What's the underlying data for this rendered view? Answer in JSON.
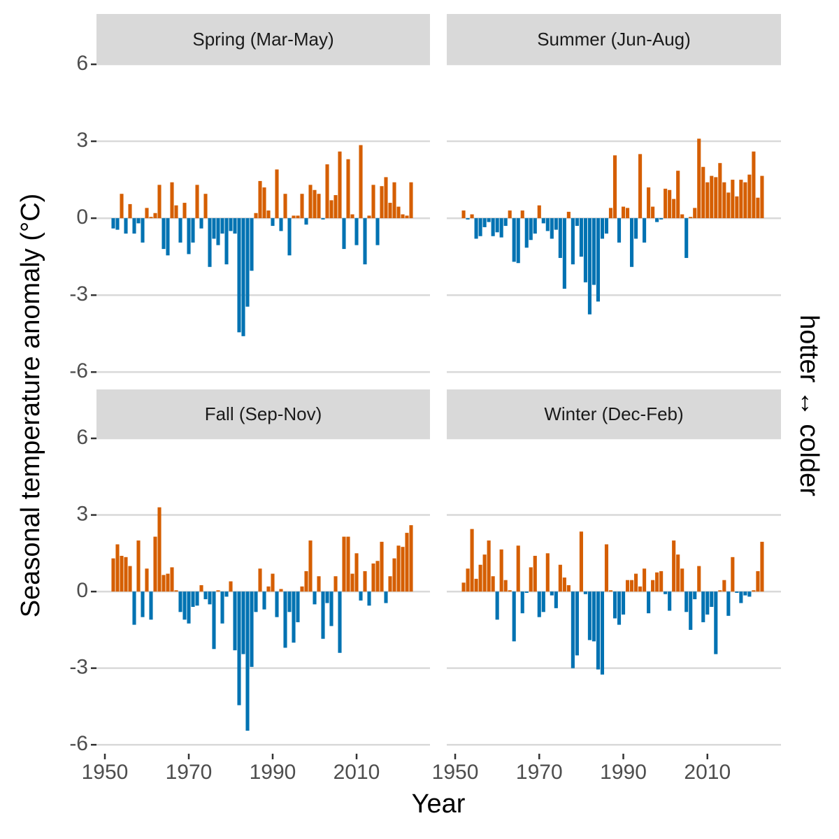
{
  "figure": {
    "xlabel": "Year",
    "ylabel": "Seasonal temperature anomaly (°C)",
    "right_label": "hotter ↔ colder"
  },
  "chart_data": [
    {
      "type": "bar",
      "title": "Spring (Mar-May)",
      "positive_color": "#D55E00",
      "negative_color": "#0072B2",
      "grid": true,
      "xlim": [
        1948,
        2027.5
      ],
      "ylim": [
        -6.35,
        6
      ],
      "yticks": [
        -6,
        -3,
        0,
        3,
        6
      ],
      "x": [
        1952,
        1953,
        1954,
        1955,
        1956,
        1957,
        1958,
        1959,
        1960,
        1961,
        1962,
        1963,
        1964,
        1965,
        1966,
        1967,
        1968,
        1969,
        1970,
        1971,
        1972,
        1973,
        1974,
        1975,
        1976,
        1977,
        1978,
        1979,
        1980,
        1981,
        1982,
        1983,
        1984,
        1985,
        1986,
        1987,
        1988,
        1989,
        1990,
        1991,
        1992,
        1993,
        1994,
        1995,
        1996,
        1997,
        1998,
        1999,
        2000,
        2001,
        2002,
        2003,
        2004,
        2005,
        2006,
        2007,
        2008,
        2009,
        2010,
        2011,
        2012,
        2013,
        2014,
        2015,
        2016,
        2017,
        2018,
        2019,
        2020,
        2021,
        2022,
        2023
      ],
      "values": [
        -0.4,
        -0.45,
        0.95,
        -0.6,
        0.55,
        -0.6,
        -0.2,
        -0.95,
        0.4,
        0.05,
        0.2,
        1.3,
        -1.2,
        -1.45,
        1.4,
        0.5,
        -0.95,
        0.6,
        -1.4,
        -0.95,
        1.3,
        -0.4,
        0.95,
        -1.9,
        -0.8,
        -1.05,
        -0.6,
        -1.8,
        -0.5,
        -0.6,
        -4.45,
        -4.6,
        -3.45,
        -2.05,
        0.2,
        1.45,
        1.2,
        0.3,
        -0.3,
        1.9,
        -0.5,
        0.95,
        -1.45,
        0.1,
        0.1,
        0.95,
        -0.25,
        1.3,
        1.1,
        0.95,
        -0.05,
        2.1,
        0.7,
        0.9,
        2.6,
        -1.2,
        2.3,
        0.15,
        -1.05,
        2.85,
        -1.8,
        0.1,
        1.3,
        -1.05,
        1.25,
        1.6,
        0.6,
        1.4,
        0.45,
        0.15,
        0.1,
        1.4
      ]
    },
    {
      "type": "bar",
      "title": "Summer (Jun-Aug)",
      "positive_color": "#D55E00",
      "negative_color": "#0072B2",
      "grid": true,
      "xlim": [
        1948,
        2027.5
      ],
      "ylim": [
        -6.35,
        6
      ],
      "yticks": [
        -6,
        -3,
        0,
        3,
        6
      ],
      "x": [
        1952,
        1953,
        1954,
        1955,
        1956,
        1957,
        1958,
        1959,
        1960,
        1961,
        1962,
        1963,
        1964,
        1965,
        1966,
        1967,
        1968,
        1969,
        1970,
        1971,
        1972,
        1973,
        1974,
        1975,
        1976,
        1977,
        1978,
        1979,
        1980,
        1981,
        1982,
        1983,
        1984,
        1985,
        1986,
        1987,
        1988,
        1989,
        1990,
        1991,
        1992,
        1993,
        1994,
        1995,
        1996,
        1997,
        1998,
        1999,
        2000,
        2001,
        2002,
        2003,
        2004,
        2005,
        2006,
        2007,
        2008,
        2009,
        2010,
        2011,
        2012,
        2013,
        2014,
        2015,
        2016,
        2017,
        2018,
        2019,
        2020,
        2021,
        2022,
        2023
      ],
      "values": [
        0.3,
        -0.05,
        0.15,
        -0.8,
        -0.7,
        -0.35,
        -0.15,
        -0.7,
        -0.55,
        -0.75,
        -0.3,
        0.3,
        -1.7,
        -1.75,
        0.3,
        -1.15,
        -0.85,
        -0.6,
        0.5,
        -0.2,
        -0.5,
        -0.8,
        -0.45,
        -1.55,
        -2.75,
        0.25,
        -1.8,
        -0.3,
        -1.5,
        -2.5,
        -3.75,
        -2.6,
        -3.25,
        -0.8,
        -0.6,
        0.4,
        2.45,
        -0.95,
        0.45,
        0.4,
        -1.9,
        -0.8,
        2.5,
        -0.95,
        1.2,
        0.45,
        -0.15,
        -0.05,
        1.15,
        1.1,
        0.75,
        1.85,
        0.15,
        -1.55,
        0.05,
        0.4,
        3.1,
        2.0,
        1.4,
        1.65,
        1.6,
        2.15,
        1.4,
        1.0,
        1.5,
        0.85,
        1.5,
        1.4,
        1.7,
        2.6,
        0.8,
        1.65
      ]
    },
    {
      "type": "bar",
      "title": "Fall (Sep-Nov)",
      "positive_color": "#D55E00",
      "negative_color": "#0072B2",
      "grid": true,
      "xlim": [
        1948,
        2027.5
      ],
      "ylim": [
        -6.35,
        6
      ],
      "yticks": [
        -6,
        -3,
        0,
        3,
        6
      ],
      "xticks": [
        1950,
        1970,
        1990,
        2010
      ],
      "x": [
        1952,
        1953,
        1954,
        1955,
        1956,
        1957,
        1958,
        1959,
        1960,
        1961,
        1962,
        1963,
        1964,
        1965,
        1966,
        1967,
        1968,
        1969,
        1970,
        1971,
        1972,
        1973,
        1974,
        1975,
        1976,
        1977,
        1978,
        1979,
        1980,
        1981,
        1982,
        1983,
        1984,
        1985,
        1986,
        1987,
        1988,
        1989,
        1990,
        1991,
        1992,
        1993,
        1994,
        1995,
        1996,
        1997,
        1998,
        1999,
        2000,
        2001,
        2002,
        2003,
        2004,
        2005,
        2006,
        2007,
        2008,
        2009,
        2010,
        2011,
        2012,
        2013,
        2014,
        2015,
        2016,
        2017,
        2018,
        2019,
        2020,
        2021,
        2022,
        2023
      ],
      "values": [
        1.3,
        1.85,
        1.4,
        1.35,
        1.0,
        -1.3,
        2.0,
        -1.0,
        0.9,
        -1.1,
        2.15,
        3.3,
        0.65,
        0.7,
        0.95,
        0.05,
        -0.8,
        -1.1,
        -1.25,
        -0.6,
        -0.55,
        0.25,
        -0.3,
        -0.5,
        -2.25,
        0.05,
        -1.25,
        -0.2,
        0.4,
        -2.3,
        -4.45,
        -2.45,
        -5.45,
        -2.95,
        -0.8,
        0.9,
        -0.7,
        0.2,
        0.7,
        -1.0,
        0.1,
        -2.2,
        -0.8,
        -2.0,
        -1.2,
        0.2,
        0.8,
        2.0,
        -0.5,
        0.6,
        -1.85,
        -0.45,
        -1.35,
        0.6,
        -2.4,
        2.15,
        2.15,
        0.7,
        1.5,
        -0.35,
        0.8,
        -0.55,
        1.1,
        1.2,
        1.95,
        -0.45,
        0.6,
        1.3,
        1.8,
        1.75,
        2.3,
        2.6
      ]
    },
    {
      "type": "bar",
      "title": "Winter (Dec-Feb)",
      "positive_color": "#D55E00",
      "negative_color": "#0072B2",
      "grid": true,
      "xlim": [
        1948,
        2027.5
      ],
      "ylim": [
        -6.35,
        6
      ],
      "yticks": [
        -6,
        -3,
        0,
        3,
        6
      ],
      "xticks": [
        1950,
        1970,
        1990,
        2010
      ],
      "x": [
        1952,
        1953,
        1954,
        1955,
        1956,
        1957,
        1958,
        1959,
        1960,
        1961,
        1962,
        1963,
        1964,
        1965,
        1966,
        1967,
        1968,
        1969,
        1970,
        1971,
        1972,
        1973,
        1974,
        1975,
        1976,
        1977,
        1978,
        1979,
        1980,
        1981,
        1982,
        1983,
        1984,
        1985,
        1986,
        1987,
        1988,
        1989,
        1990,
        1991,
        1992,
        1993,
        1994,
        1995,
        1996,
        1997,
        1998,
        1999,
        2000,
        2001,
        2002,
        2003,
        2004,
        2005,
        2006,
        2007,
        2008,
        2009,
        2010,
        2011,
        2012,
        2013,
        2014,
        2015,
        2016,
        2017,
        2018,
        2019,
        2020,
        2021,
        2022,
        2023
      ],
      "values": [
        0.35,
        0.9,
        2.45,
        0.5,
        1.05,
        1.45,
        2.0,
        0.6,
        -1.1,
        1.65,
        0.45,
        0.05,
        -1.95,
        1.8,
        -0.85,
        -0.05,
        0.95,
        1.4,
        -1.0,
        -0.8,
        1.5,
        -0.15,
        -0.65,
        1.05,
        0.55,
        0.25,
        -3.0,
        -2.5,
        2.35,
        -0.1,
        -1.9,
        -1.95,
        -3.05,
        -3.25,
        1.85,
        0.05,
        -1.05,
        -1.3,
        -0.9,
        0.45,
        0.45,
        0.7,
        0.2,
        0.9,
        -0.85,
        0.45,
        0.75,
        0.8,
        -0.1,
        -0.75,
        2.0,
        1.45,
        0.9,
        -0.8,
        -1.5,
        -0.3,
        1.0,
        -1.2,
        -0.9,
        -0.6,
        -2.45,
        0.05,
        0.45,
        -0.95,
        1.35,
        -0.05,
        -0.45,
        -0.15,
        -0.2,
        0.05,
        0.8,
        1.95
      ]
    }
  ]
}
